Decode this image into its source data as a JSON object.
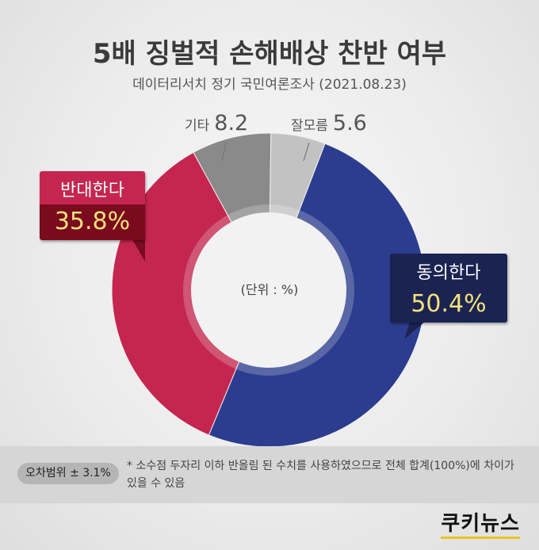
{
  "chart_data": {
    "type": "pie",
    "title": "5배 징벌적 손해배상 찬반 여부",
    "subtitle": "데이터리서치 정기 국민여론조사 (2021.08.23)",
    "unit_label": "(단위 : %)",
    "slices": [
      {
        "label": "동의한다",
        "value": 50.4,
        "value_text": "50.4%",
        "color": "#2c3d8f"
      },
      {
        "label": "반대한다",
        "value": 35.8,
        "value_text": "35.8%",
        "color": "#c4264f"
      },
      {
        "label": "기타",
        "value": 8.2,
        "value_text": "8.2",
        "color": "#8a8a8a"
      },
      {
        "label": "잘모름",
        "value": 5.6,
        "value_text": "5.6",
        "color": "#c2c2c2"
      }
    ]
  },
  "footer": {
    "error_margin": "오차범위 ± 3.1%",
    "note": "* 소수점 두자리 이하 반올림 된 수치를 사용하였으므로 전체 합계(100%)에 차이가 있을 수 있음",
    "logo": "쿠키뉴스"
  },
  "colors": {
    "agree_box": "#1b2352",
    "agree_value": "#f3e37a",
    "oppose_top": "#c4264f",
    "oppose_bottom": "#7a0a1e",
    "oppose_value": "#f3e37a"
  }
}
